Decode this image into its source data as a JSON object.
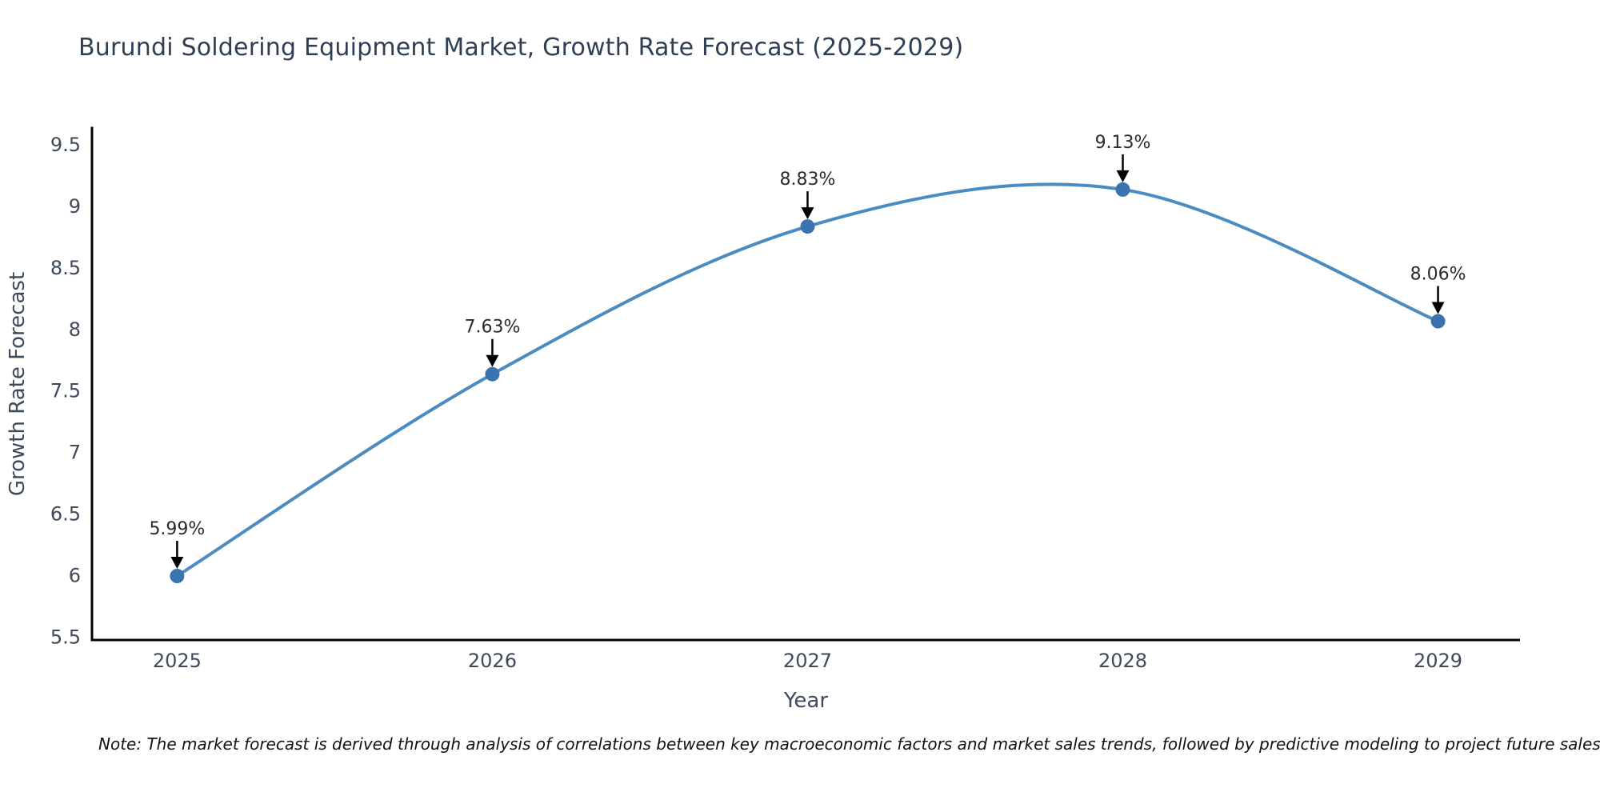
{
  "header": {
    "title": "Burundi Soldering Equipment Market, Growth Rate Forecast (2025-2029)"
  },
  "chart_data": {
    "type": "line",
    "title": "Burundi Soldering Equipment Market, Growth Rate Forecast (2025-2029)",
    "x": [
      2025,
      2026,
      2027,
      2028,
      2029
    ],
    "series": [
      {
        "name": "Growth Rate Forecast",
        "values": [
          5.99,
          7.63,
          8.83,
          9.13,
          8.06
        ]
      }
    ],
    "point_labels": [
      "5.99%",
      "7.63%",
      "8.83%",
      "9.13%",
      "8.06%"
    ],
    "xlabel": "Year",
    "ylabel": "Growth Rate Forecast",
    "xticks": [
      "2025",
      "2026",
      "2027",
      "2028",
      "2029"
    ],
    "yticks": [
      5.5,
      6,
      6.5,
      7,
      7.5,
      8,
      8.5,
      9,
      9.5
    ],
    "xlim": [
      2024.73,
      2029.26
    ],
    "ylim": [
      5.47,
      9.63
    ],
    "grid": false,
    "legend_position": "none",
    "line_style": "spline",
    "colors": {
      "line": "#4a8cc2",
      "marker": "#3a73af",
      "axis": "#000000",
      "tick_label": "#3d4a5c",
      "axis_title": "#3d4a5c",
      "annotation_text": "#2b2b2b",
      "annotation_arrow": "#000000",
      "title": "#2e3f54"
    }
  },
  "footnote": {
    "text": "Note: The market forecast is derived through analysis of correlations between key macroeconomic factors and market sales trends, followed by predictive modeling to project future sales"
  }
}
